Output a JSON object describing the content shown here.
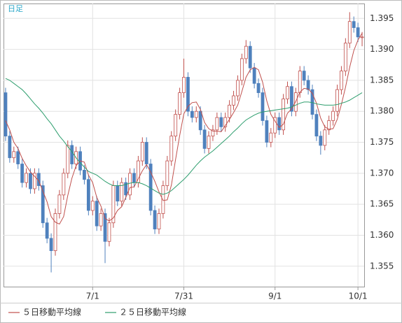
{
  "chart_data": {
    "type": "candlestick",
    "title": "日足",
    "categories": [
      null,
      null,
      null,
      null,
      null,
      null,
      null,
      null,
      null,
      null,
      null,
      null,
      null,
      null,
      null,
      null,
      null,
      null,
      null,
      null,
      null,
      "7/1",
      null,
      null,
      null,
      null,
      null,
      null,
      null,
      null,
      null,
      null,
      null,
      null,
      null,
      null,
      null,
      null,
      null,
      null,
      null,
      null,
      null,
      "7/31",
      null,
      null,
      null,
      null,
      null,
      null,
      null,
      null,
      null,
      null,
      null,
      null,
      null,
      null,
      null,
      null,
      null,
      null,
      null,
      null,
      null,
      "9/1",
      null,
      null,
      null,
      null,
      null,
      null,
      null,
      null,
      null,
      null,
      null,
      null,
      null,
      null,
      null,
      null,
      null,
      null,
      null,
      "10/1",
      null
    ],
    "open": [
      1.383,
      1.376,
      1.3725,
      1.3735,
      1.3715,
      1.3685,
      1.37,
      1.3675,
      1.37,
      1.368,
      1.362,
      1.3595,
      1.3575,
      1.3635,
      1.3665,
      1.37,
      1.3745,
      1.3715,
      1.3735,
      1.3705,
      1.369,
      1.364,
      1.3655,
      1.3615,
      1.3635,
      1.359,
      1.362,
      1.368,
      1.3655,
      1.3685,
      1.3665,
      1.37,
      1.3685,
      1.372,
      1.375,
      1.3715,
      1.364,
      1.361,
      1.3635,
      1.368,
      1.372,
      1.376,
      1.3795,
      1.383,
      1.3855,
      1.38,
      1.379,
      1.38,
      1.377,
      1.374,
      1.376,
      1.377,
      1.379,
      1.3775,
      1.379,
      1.381,
      1.3825,
      1.385,
      1.3885,
      1.3905,
      1.387,
      1.3845,
      1.383,
      1.3785,
      1.375,
      1.3765,
      1.379,
      1.377,
      1.382,
      1.384,
      1.38,
      1.383,
      1.3865,
      1.385,
      1.3835,
      1.3795,
      1.376,
      1.3745,
      1.377,
      1.3785,
      1.38,
      1.3835,
      1.3865,
      1.391,
      1.3945,
      1.3935,
      1.392
    ],
    "high": [
      1.3838,
      1.3768,
      1.3743,
      1.3743,
      1.3723,
      1.3708,
      1.3708,
      1.3708,
      1.3708,
      1.3688,
      1.3628,
      1.3603,
      1.3643,
      1.3673,
      1.3708,
      1.3753,
      1.3753,
      1.3743,
      1.3743,
      1.3713,
      1.3698,
      1.3663,
      1.3663,
      1.3643,
      1.3643,
      1.3628,
      1.3688,
      1.3688,
      1.3693,
      1.3693,
      1.3708,
      1.3708,
      1.3728,
      1.3758,
      1.3758,
      1.3723,
      1.3648,
      1.3643,
      1.3688,
      1.3728,
      1.3768,
      1.3803,
      1.3838,
      1.3885,
      1.3863,
      1.3808,
      1.3808,
      1.3808,
      1.3778,
      1.3768,
      1.3778,
      1.3798,
      1.3798,
      1.3798,
      1.3818,
      1.3833,
      1.3858,
      1.3893,
      1.3915,
      1.3913,
      1.3878,
      1.3853,
      1.3838,
      1.3793,
      1.3773,
      1.3798,
      1.3798,
      1.3828,
      1.3848,
      1.3848,
      1.3838,
      1.3873,
      1.3873,
      1.3858,
      1.3843,
      1.3803,
      1.3768,
      1.3778,
      1.3793,
      1.3808,
      1.3843,
      1.3873,
      1.3918,
      1.396,
      1.3953,
      1.3943,
      1.3928
    ],
    "low": [
      1.3752,
      1.3717,
      1.3717,
      1.3707,
      1.3677,
      1.3677,
      1.3667,
      1.3667,
      1.3672,
      1.3612,
      1.3587,
      1.354,
      1.3567,
      1.3627,
      1.3657,
      1.3692,
      1.3707,
      1.3707,
      1.3697,
      1.3682,
      1.3632,
      1.3632,
      1.3607,
      1.3607,
      1.3555,
      1.3582,
      1.3612,
      1.3647,
      1.3647,
      1.3657,
      1.3657,
      1.3677,
      1.3677,
      1.3712,
      1.3707,
      1.3632,
      1.3602,
      1.3602,
      1.3627,
      1.3672,
      1.3712,
      1.3752,
      1.3787,
      1.3822,
      1.3792,
      1.3782,
      1.3782,
      1.3762,
      1.3732,
      1.3732,
      1.3752,
      1.3762,
      1.3767,
      1.3767,
      1.3782,
      1.3802,
      1.3817,
      1.3842,
      1.3877,
      1.3862,
      1.3837,
      1.3822,
      1.3777,
      1.3742,
      1.3742,
      1.3757,
      1.3762,
      1.3762,
      1.3812,
      1.3792,
      1.3792,
      1.3822,
      1.3842,
      1.3827,
      1.3787,
      1.3752,
      1.373,
      1.3737,
      1.3762,
      1.3777,
      1.3792,
      1.3827,
      1.3857,
      1.3902,
      1.3927,
      1.3912,
      1.3905
    ],
    "close": [
      1.376,
      1.3725,
      1.3735,
      1.3715,
      1.3685,
      1.37,
      1.3675,
      1.37,
      1.368,
      1.362,
      1.3595,
      1.3575,
      1.3635,
      1.3665,
      1.37,
      1.3745,
      1.3715,
      1.3735,
      1.3705,
      1.369,
      1.364,
      1.3655,
      1.3615,
      1.3635,
      1.359,
      1.362,
      1.368,
      1.3655,
      1.3685,
      1.3665,
      1.37,
      1.3685,
      1.372,
      1.375,
      1.3715,
      1.364,
      1.361,
      1.3635,
      1.368,
      1.372,
      1.376,
      1.3795,
      1.383,
      1.3855,
      1.38,
      1.379,
      1.38,
      1.377,
      1.374,
      1.376,
      1.377,
      1.379,
      1.3775,
      1.379,
      1.381,
      1.3825,
      1.385,
      1.3885,
      1.3905,
      1.387,
      1.3845,
      1.383,
      1.3785,
      1.375,
      1.3765,
      1.379,
      1.377,
      1.382,
      1.384,
      1.38,
      1.383,
      1.3865,
      1.385,
      1.3835,
      1.3795,
      1.376,
      1.3745,
      1.377,
      1.3785,
      1.38,
      1.3835,
      1.3865,
      1.391,
      1.3945,
      1.3935,
      1.392,
      1.392
    ],
    "up_color": "#c0504d",
    "down_color": "#4f81bd",
    "series": [
      {
        "name": "５日移動平均線",
        "color": "#c0504d",
        "values": [
          1.3785,
          1.377,
          1.375,
          1.374,
          1.3724,
          1.3712,
          1.3702,
          1.3695,
          1.3688,
          1.3671,
          1.3654,
          1.363,
          1.3621,
          1.3618,
          1.363,
          1.3664,
          1.3692,
          1.3712,
          1.372,
          1.3718,
          1.3697,
          1.3685,
          1.3661,
          1.3647,
          1.3627,
          1.3623,
          1.3628,
          1.364,
          1.3646,
          1.3661,
          1.3677,
          1.3678,
          1.3691,
          1.3704,
          1.3714,
          1.3702,
          1.3687,
          1.367,
          1.3656,
          1.3657,
          1.3681,
          1.3722,
          1.3761,
          1.3796,
          1.3808,
          1.3814,
          1.3815,
          1.3803,
          1.3782,
          1.3772,
          1.3768,
          1.3768,
          1.3767,
          1.3777,
          1.3787,
          1.3798,
          1.381,
          1.3832,
          1.3855,
          1.3867,
          1.3871,
          1.3867,
          1.3847,
          1.3817,
          1.3795,
          1.3784,
          1.3774,
          1.3779,
          1.3797,
          1.3804,
          1.3816,
          1.3831,
          1.3837,
          1.3836,
          1.3829,
          1.3813,
          1.3789,
          1.3775,
          1.3771,
          1.3772,
          1.3787,
          1.3811,
          1.3839,
          1.3871,
          1.3898,
          1.3915,
          1.3926
        ]
      },
      {
        "name": "２５日移動平均線",
        "color": "#2e9e6e",
        "values": [
          1.3853,
          1.385,
          1.3845,
          1.384,
          1.3835,
          1.3828,
          1.382,
          1.3812,
          1.3805,
          1.3797,
          1.3788,
          1.378,
          1.377,
          1.376,
          1.3752,
          1.3743,
          1.3735,
          1.3725,
          1.3717,
          1.371,
          1.3703,
          1.37,
          1.3697,
          1.3692,
          1.3687,
          1.3683,
          1.368,
          1.368,
          1.368,
          1.3682,
          1.3684,
          1.3685,
          1.3685,
          1.3683,
          1.368,
          1.3676,
          1.3672,
          1.3668,
          1.3666,
          1.3668,
          1.3672,
          1.3678,
          1.3684,
          1.369,
          1.3697,
          1.3705,
          1.3713,
          1.372,
          1.3726,
          1.3731,
          1.3736,
          1.3742,
          1.3748,
          1.3754,
          1.376,
          1.3767,
          1.3773,
          1.378,
          1.3786,
          1.379,
          1.3794,
          1.3797,
          1.3799,
          1.38,
          1.3801,
          1.3802,
          1.3803,
          1.3804,
          1.3805,
          1.3807,
          1.381,
          1.3813,
          1.3815,
          1.3815,
          1.3814,
          1.3812,
          1.3811,
          1.381,
          1.381,
          1.381,
          1.3811,
          1.3813,
          1.3815,
          1.3818,
          1.3822,
          1.3826,
          1.383
        ]
      }
    ],
    "ylim": [
      1.3517,
      1.3974
    ],
    "yticks": [
      1.355,
      {
        "value": 1.36,
        "label": "1.360"
      },
      1.365,
      {
        "value": 1.37,
        "label": "1.370"
      },
      1.375,
      {
        "value": 1.38,
        "label": "1.380"
      },
      1.385,
      {
        "value": 1.39,
        "label": "1.390"
      },
      1.395
    ],
    "grid": true
  }
}
